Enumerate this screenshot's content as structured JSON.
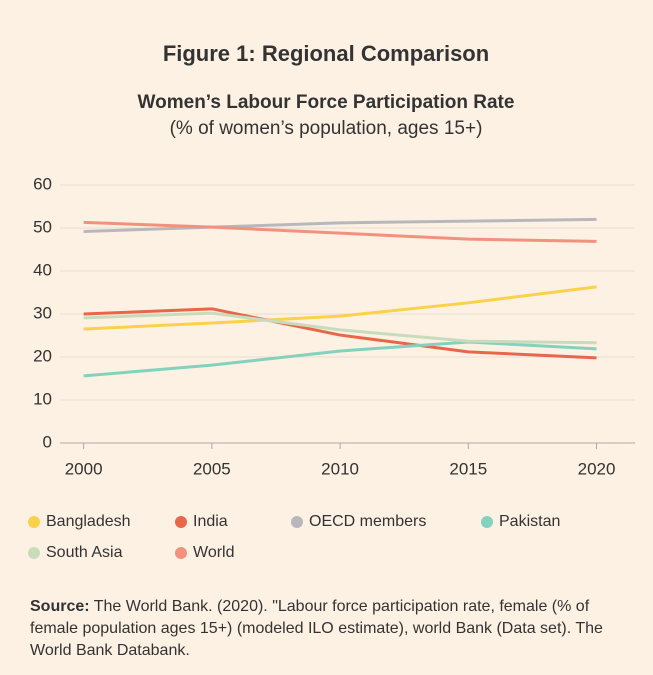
{
  "chart_data": {
    "type": "line",
    "title": "Figure 1: Regional Comparison",
    "subtitle": "Women’s Labour Force Participation Rate",
    "y_label": "(% of women’s population, ages 15+)",
    "x": [
      2000,
      2005,
      2010,
      2015,
      2020
    ],
    "xlim": [
      1999,
      2021.5
    ],
    "xticks": [
      2000,
      2005,
      2010,
      2015,
      2020
    ],
    "ylim": [
      0,
      60
    ],
    "yticks": [
      0,
      10,
      20,
      30,
      40,
      50,
      60
    ],
    "grid": true,
    "series": [
      {
        "name": "Bangladesh",
        "color": "#f9d24a",
        "values": [
          26.5,
          27.9,
          29.5,
          32.6,
          36.3
        ]
      },
      {
        "name": "India",
        "color": "#e8674a",
        "values": [
          30.0,
          31.2,
          25.1,
          21.2,
          19.8
        ]
      },
      {
        "name": "OECD members",
        "color": "#b8b8bc",
        "values": [
          49.2,
          50.2,
          51.2,
          51.6,
          52.0
        ]
      },
      {
        "name": "Pakistan",
        "color": "#82d2bd",
        "values": [
          15.6,
          18.1,
          21.4,
          23.5,
          21.9
        ]
      },
      {
        "name": "South Asia",
        "color": "#c8dcbc",
        "values": [
          29.1,
          30.2,
          26.3,
          23.7,
          23.3
        ]
      },
      {
        "name": "World",
        "color": "#f2917e",
        "values": [
          51.3,
          50.2,
          48.8,
          47.4,
          46.9
        ]
      }
    ],
    "source_label": "Source:",
    "source_text": "The World Bank. (2020). \"Labour force participation rate, female (% of female population ages 15+) (modeled ILO estimate), world Bank (Data set). The World Bank Databank."
  }
}
